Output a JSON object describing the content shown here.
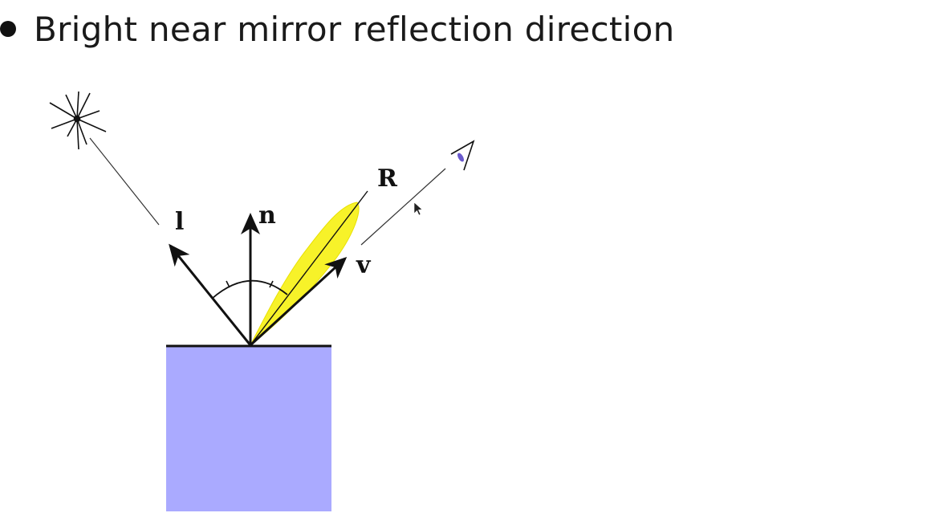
{
  "slide": {
    "bullet_text": "Bright near mirror reflection direction"
  },
  "diagram": {
    "labels": {
      "light": "l",
      "normal": "n",
      "reflection": "R",
      "view": "v"
    },
    "colors": {
      "surface_fill": "#aaaaff",
      "highlight_lobe": "#f7f229",
      "line": "#111111"
    },
    "icons": [
      "light-source-icon",
      "eye-icon",
      "mouse-cursor-icon"
    ]
  }
}
